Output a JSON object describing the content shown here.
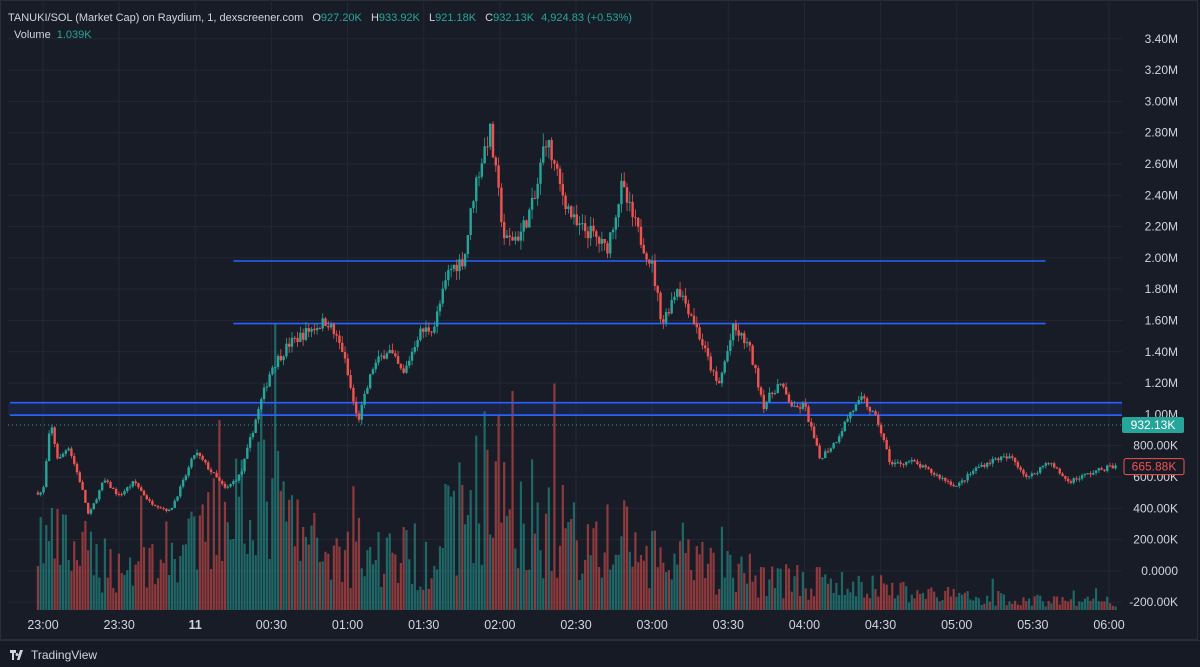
{
  "header": {
    "symbol": "TANUKI/SOL (Market Cap) on Raydium, 1, dexscreener.com",
    "open_label": "O",
    "open": "927.20K",
    "high_label": "H",
    "high": "933.92K",
    "low_label": "L",
    "low": "921.18K",
    "close_label": "C",
    "close": "932.13K",
    "change": "4,924.83 (+0.53%)",
    "volume_label": "Volume",
    "volume": "1.039K"
  },
  "footer": {
    "brand": "TradingView"
  },
  "colors": {
    "up": "#26a69a",
    "down": "#ef5350",
    "bg": "#181c27",
    "hline": "#2962ff",
    "text": "#d1d4dc"
  },
  "chart_data": {
    "type": "candlestick",
    "y_axis": {
      "ticks": [
        "3.40M",
        "3.20M",
        "3.00M",
        "2.80M",
        "2.60M",
        "2.40M",
        "2.20M",
        "2.00M",
        "1.80M",
        "1.60M",
        "1.40M",
        "1.20M",
        "1.00M",
        "800.00K",
        "600.00K",
        "400.00K",
        "200.00K",
        "0.0000",
        "-200.00K"
      ],
      "tick_values": [
        3400000,
        3200000,
        3000000,
        2800000,
        2600000,
        2400000,
        2200000,
        2000000,
        1800000,
        1600000,
        1400000,
        1200000,
        1000000,
        800000,
        600000,
        400000,
        200000,
        0,
        -200000
      ],
      "range": [
        -250000,
        3520000
      ]
    },
    "x_axis": {
      "ticks": [
        "23:00",
        "23:30",
        "11",
        "00:30",
        "01:00",
        "01:30",
        "02:00",
        "02:30",
        "03:00",
        "03:30",
        "04:00",
        "04:30",
        "05:00",
        "05:30",
        "06:00"
      ],
      "bold_tick": "11"
    },
    "price_labels": [
      {
        "text": "932.13K",
        "value": 932130,
        "color": "#26a69a"
      },
      {
        "text": "665.88K",
        "value": 665880,
        "color": "#ef5350"
      }
    ],
    "horizontal_lines": [
      {
        "value": 1980000,
        "from": "00:15",
        "to": "05:35"
      },
      {
        "value": 1580000,
        "from": "00:15",
        "to": "05:35"
      },
      {
        "value": 1075000,
        "from": "22:47",
        "to": "06:00"
      },
      {
        "value": 995000,
        "from": "22:47",
        "to": "06:00"
      }
    ],
    "price_path": [
      [
        "23:00",
        500000
      ],
      [
        "23:03",
        950000
      ],
      [
        "23:06",
        700000
      ],
      [
        "23:10",
        800000
      ],
      [
        "23:15",
        550000
      ],
      [
        "23:18",
        350000
      ],
      [
        "23:24",
        580000
      ],
      [
        "23:30",
        480000
      ],
      [
        "23:36",
        570000
      ],
      [
        "23:42",
        440000
      ],
      [
        "23:50",
        380000
      ],
      [
        "23:55",
        560000
      ],
      [
        "00:00",
        760000
      ],
      [
        "00:06",
        640000
      ],
      [
        "00:12",
        520000
      ],
      [
        "00:18",
        620000
      ],
      [
        "00:24",
        980000
      ],
      [
        "00:30",
        1300000
      ],
      [
        "00:37",
        1450000
      ],
      [
        "00:45",
        1540000
      ],
      [
        "00:52",
        1600000
      ],
      [
        "00:58",
        1410000
      ],
      [
        "01:04",
        950000
      ],
      [
        "01:10",
        1300000
      ],
      [
        "01:16",
        1420000
      ],
      [
        "01:22",
        1250000
      ],
      [
        "01:28",
        1520000
      ],
      [
        "01:34",
        1560000
      ],
      [
        "01:40",
        1920000
      ],
      [
        "01:46",
        2000000
      ],
      [
        "01:50",
        2450000
      ],
      [
        "01:56",
        2820000
      ],
      [
        "02:02",
        2100000
      ],
      [
        "02:08",
        2150000
      ],
      [
        "02:14",
        2380000
      ],
      [
        "02:18",
        2780000
      ],
      [
        "02:24",
        2440000
      ],
      [
        "02:30",
        2200000
      ],
      [
        "02:36",
        2160000
      ],
      [
        "02:42",
        2050000
      ],
      [
        "02:48",
        2450000
      ],
      [
        "02:54",
        2180000
      ],
      [
        "03:00",
        1950000
      ],
      [
        "03:04",
        1580000
      ],
      [
        "03:10",
        1820000
      ],
      [
        "03:16",
        1620000
      ],
      [
        "03:22",
        1350000
      ],
      [
        "03:26",
        1170000
      ],
      [
        "03:32",
        1550000
      ],
      [
        "03:38",
        1440000
      ],
      [
        "03:44",
        1060000
      ],
      [
        "03:50",
        1200000
      ],
      [
        "03:56",
        1030000
      ],
      [
        "04:00",
        1060000
      ],
      [
        "04:06",
        720000
      ],
      [
        "04:12",
        820000
      ],
      [
        "04:18",
        1010000
      ],
      [
        "04:23",
        1100000
      ],
      [
        "04:29",
        950000
      ],
      [
        "04:34",
        680000
      ],
      [
        "04:42",
        700000
      ],
      [
        "04:50",
        630000
      ],
      [
        "05:00",
        540000
      ],
      [
        "05:08",
        660000
      ],
      [
        "05:16",
        720000
      ],
      [
        "05:22",
        720000
      ],
      [
        "05:28",
        590000
      ],
      [
        "05:36",
        700000
      ],
      [
        "05:44",
        570000
      ],
      [
        "05:52",
        620000
      ],
      [
        "06:00",
        665000
      ]
    ],
    "volume_profile": [
      [
        "23:00",
        100
      ],
      [
        "23:30",
        60
      ],
      [
        "00:00",
        90
      ],
      [
        "00:24",
        190
      ],
      [
        "00:45",
        90
      ],
      [
        "01:00",
        80
      ],
      [
        "01:30",
        75
      ],
      [
        "01:56",
        190
      ],
      [
        "02:18",
        120
      ],
      [
        "02:45",
        90
      ],
      [
        "03:00",
        70
      ],
      [
        "03:30",
        55
      ],
      [
        "04:00",
        40
      ],
      [
        "04:30",
        30
      ],
      [
        "05:00",
        20
      ],
      [
        "05:30",
        14
      ],
      [
        "06:00",
        12
      ]
    ]
  }
}
